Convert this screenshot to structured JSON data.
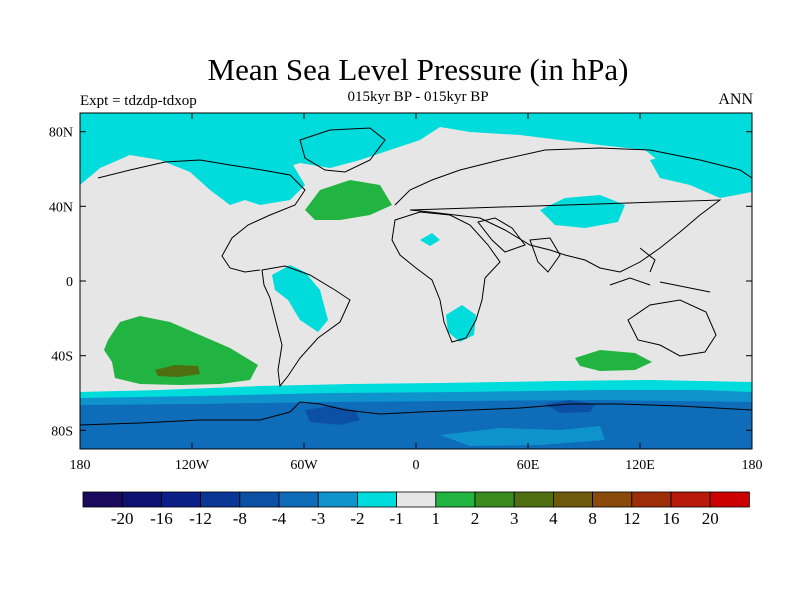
{
  "header": {
    "title": "Mean Sea Level Pressure (in hPa)",
    "experiment": "Expt = tdzdp-tdxop",
    "subtitle": "015kyr BP - 015kyr BP",
    "season": "ANN"
  },
  "axes": {
    "lat_ticks": [
      "80N",
      "40N",
      "0",
      "40S",
      "80S"
    ],
    "lon_ticks": [
      "180",
      "120W",
      "60W",
      "0",
      "60E",
      "120E",
      "180"
    ]
  },
  "colorbar": {
    "labels": [
      "-20",
      "-16",
      "-12",
      "-8",
      "-4",
      "-3",
      "-2",
      "-1",
      "1",
      "2",
      "3",
      "4",
      "8",
      "12",
      "16",
      "20"
    ],
    "colors": [
      "#1a0a5e",
      "#0d1170",
      "#0a1f88",
      "#0a3696",
      "#0c50a6",
      "#0f6cb8",
      "#0e93cc",
      "#00dcdc",
      "#e6e6e6",
      "#22b440",
      "#3a8a1e",
      "#4f6e0f",
      "#6e5a0c",
      "#8a4a0a",
      "#9e2e0a",
      "#b8190a",
      "#cc0000"
    ]
  },
  "map_colors": {
    "ocean_background": "#e6e6e6",
    "cyan_band": "#00dcdc",
    "light_blue": "#0e93cc",
    "mid_blue": "#0f6cb8",
    "dark_blue": "#0c50a6",
    "green": "#22b440",
    "dark_green": "#4f6e0f"
  }
}
